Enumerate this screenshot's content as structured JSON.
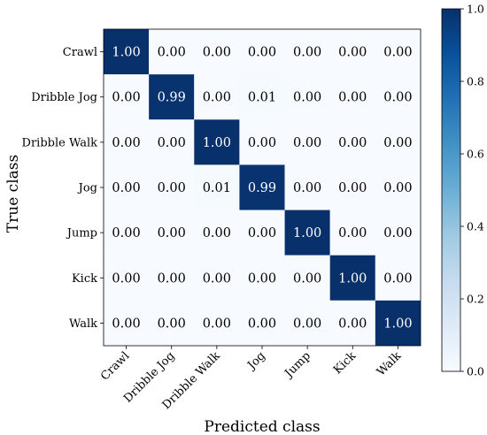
{
  "chart_data": {
    "type": "heatmap",
    "title": "",
    "xlabel": "Predicted class",
    "ylabel": "True class",
    "x_categories": [
      "Crawl",
      "Dribble Jog",
      "Dribble Walk",
      "Jog",
      "Jump",
      "Kick",
      "Walk"
    ],
    "y_categories": [
      "Crawl",
      "Dribble Jog",
      "Dribble Walk",
      "Jog",
      "Jump",
      "Kick",
      "Walk"
    ],
    "values": [
      [
        1.0,
        0.0,
        0.0,
        0.0,
        0.0,
        0.0,
        0.0
      ],
      [
        0.0,
        0.99,
        0.0,
        0.01,
        0.0,
        0.0,
        0.0
      ],
      [
        0.0,
        0.0,
        1.0,
        0.0,
        0.0,
        0.0,
        0.0
      ],
      [
        0.0,
        0.0,
        0.01,
        0.99,
        0.0,
        0.0,
        0.0
      ],
      [
        0.0,
        0.0,
        0.0,
        0.0,
        1.0,
        0.0,
        0.0
      ],
      [
        0.0,
        0.0,
        0.0,
        0.0,
        0.0,
        1.0,
        0.0
      ],
      [
        0.0,
        0.0,
        0.0,
        0.0,
        0.0,
        0.0,
        1.0
      ]
    ],
    "value_format": "2 decimals",
    "colorbar": {
      "range": [
        0.0,
        1.0
      ],
      "ticks": [
        "0.0",
        "0.2",
        "0.4",
        "0.6",
        "0.8",
        "1.0"
      ],
      "colormap": "Blues",
      "low_color": "#f7fbff",
      "high_color": "#08306b"
    },
    "legend": "none",
    "grid": false
  }
}
